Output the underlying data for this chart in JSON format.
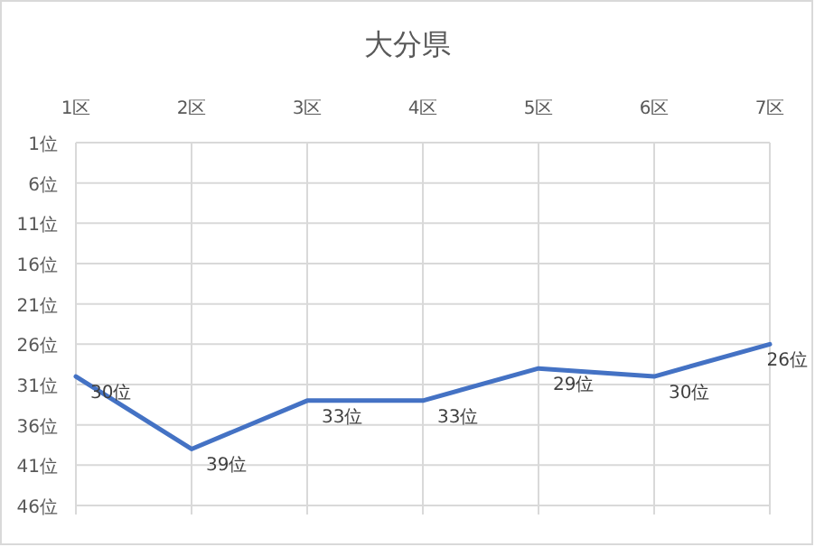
{
  "chart_data": {
    "type": "line",
    "title": "大分県",
    "categories": [
      "1区",
      "2区",
      "3区",
      "4区",
      "5区",
      "6区",
      "7区"
    ],
    "values": [
      30,
      39,
      33,
      33,
      29,
      30,
      26
    ],
    "value_labels": [
      "30位",
      "39位",
      "33位",
      "33位",
      "29位",
      "30位",
      "26位"
    ],
    "color": "#4472c4",
    "ylim": [
      46,
      1
    ],
    "yticks": [
      {
        "value": 1,
        "label": "1位"
      },
      {
        "value": 6,
        "label": "6位"
      },
      {
        "value": 11,
        "label": "11位"
      },
      {
        "value": 16,
        "label": "16位"
      },
      {
        "value": 21,
        "label": "21位"
      },
      {
        "value": 26,
        "label": "26位"
      },
      {
        "value": 31,
        "label": "31位"
      },
      {
        "value": 36,
        "label": "36位"
      },
      {
        "value": 41,
        "label": "41位"
      },
      {
        "value": 46,
        "label": "46位"
      }
    ],
    "grid": true,
    "marker": "none",
    "line_style": "solid"
  }
}
